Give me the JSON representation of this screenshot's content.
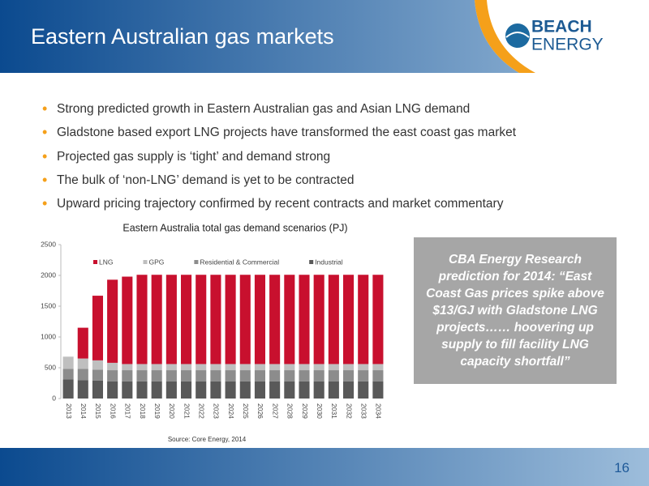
{
  "header": {
    "title": "Eastern Australian gas markets"
  },
  "logo": {
    "line1": "BEACH",
    "line2": "ENERGY"
  },
  "bullets": [
    "Strong predicted growth in Eastern Australian gas and Asian LNG demand",
    "Gladstone based export LNG projects have transformed the east coast gas market",
    "Projected gas supply is ‘tight’ and demand strong",
    "The bulk of ‘non-LNG’ demand is yet to be contracted",
    "Upward pricing trajectory confirmed by recent contracts and market commentary"
  ],
  "callout": "CBA Energy Research prediction for 2014: “East Coast Gas prices spike above $13/GJ with Gladstone LNG projects…… hoovering up supply to fill facility LNG capacity shortfall”",
  "footer": {
    "page": "16"
  },
  "chart_data": {
    "type": "stacked-bar",
    "title": "Eastern Australia total gas demand scenarios (PJ)",
    "source": "Source: Core Energy, 2014",
    "categories": [
      "2013",
      "2014",
      "2015",
      "2016",
      "2017",
      "2018",
      "2019",
      "2020",
      "2021",
      "2022",
      "2023",
      "2024",
      "2025",
      "2026",
      "2027",
      "2028",
      "2029",
      "2030",
      "2031",
      "2032",
      "2033",
      "2034"
    ],
    "series": [
      {
        "name": "LNG",
        "color": "#c8102e",
        "values": [
          0,
          500,
          1050,
          1350,
          1420,
          1450,
          1450,
          1450,
          1450,
          1450,
          1450,
          1450,
          1450,
          1450,
          1450,
          1450,
          1450,
          1450,
          1450,
          1450,
          1450,
          1450
        ]
      },
      {
        "name": "GPG",
        "color": "#bfbfbf",
        "values": [
          200,
          170,
          150,
          120,
          100,
          100,
          100,
          100,
          100,
          100,
          100,
          100,
          100,
          100,
          100,
          100,
          100,
          100,
          100,
          100,
          100,
          100
        ]
      },
      {
        "name": "Residential & Commercial",
        "color": "#8c8c8c",
        "values": [
          170,
          180,
          180,
          180,
          180,
          180,
          180,
          180,
          180,
          180,
          180,
          180,
          180,
          180,
          180,
          180,
          180,
          180,
          180,
          180,
          180,
          180
        ]
      },
      {
        "name": "Industrial",
        "color": "#595959",
        "values": [
          310,
          300,
          290,
          280,
          280,
          280,
          280,
          280,
          280,
          280,
          280,
          280,
          280,
          280,
          280,
          280,
          280,
          280,
          280,
          280,
          280,
          280
        ]
      }
    ],
    "ylim": [
      0,
      2500
    ],
    "yticks": [
      0,
      500,
      1000,
      1500,
      2000,
      2500
    ],
    "grid": false,
    "legend": "top"
  }
}
